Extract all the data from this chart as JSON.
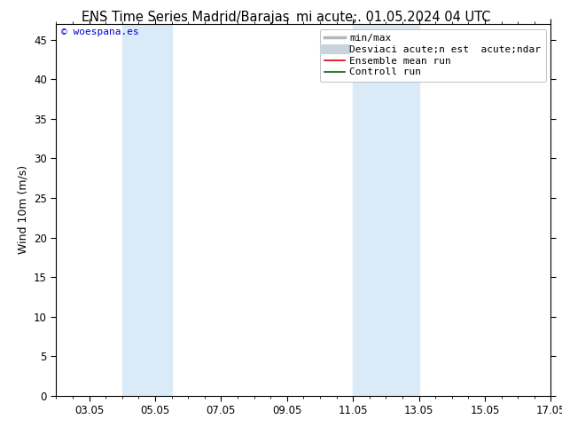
{
  "title_left": "ENS Time Series Madrid/Barajas",
  "title_right": "mi acute;. 01.05.2024 04 UTC",
  "ylabel": "Wind 10m (m/s)",
  "ylim": [
    0,
    47
  ],
  "yticks": [
    0,
    5,
    10,
    15,
    20,
    25,
    30,
    35,
    40,
    45
  ],
  "xstart_days": 0,
  "xend_days": 15,
  "xtick_labels": [
    "03.05",
    "05.05",
    "07.05",
    "09.05",
    "11.05",
    "13.05",
    "15.05",
    "17.05"
  ],
  "xtick_day_offsets": [
    1,
    3,
    5,
    7,
    9,
    11,
    13,
    15
  ],
  "shade_bands": [
    {
      "start_day": 2.0,
      "end_day": 3.5
    },
    {
      "start_day": 9.0,
      "end_day": 11.0
    }
  ],
  "shade_color": "#daeaf7",
  "background_color": "#ffffff",
  "watermark": "© woespana.es",
  "watermark_color": "#0000dd",
  "legend_labels": [
    "min/max",
    "Desviaci acute;n est  acute;ndar",
    "Ensemble mean run",
    "Controll run"
  ],
  "legend_colors": [
    "#b0b8b8",
    "#c8d4dc",
    "#dd0000",
    "#006600"
  ],
  "legend_lws": [
    2.5,
    8,
    1.2,
    1.2
  ],
  "title_fontsize": 10.5,
  "axis_label_fontsize": 9,
  "tick_fontsize": 8.5,
  "legend_fontsize": 8,
  "watermark_fontsize": 8
}
